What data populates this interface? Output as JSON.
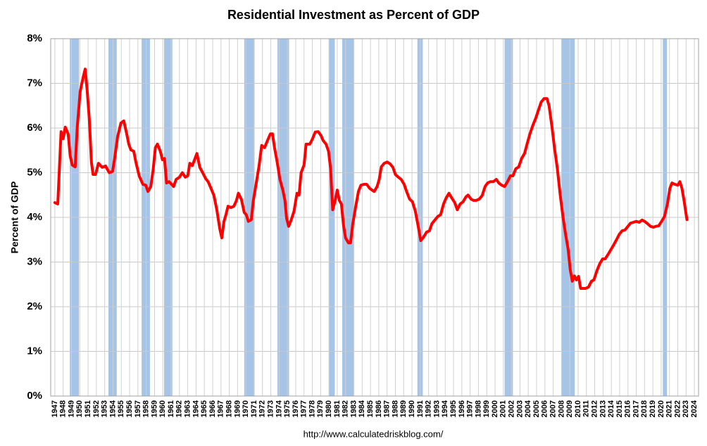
{
  "chart_data": {
    "type": "line",
    "title": "Residential Investment as Percent of GDP",
    "ylabel": "Percent of GDP",
    "source": "http://www.calculatedriskblog.com/",
    "color": "#ff0000",
    "recession_color": "#a6c3e8",
    "grid": true,
    "xlim": [
      1946.5,
      2024.5
    ],
    "ylim": [
      0,
      8
    ],
    "xticks": [
      1947,
      1948,
      1949,
      1950,
      1951,
      1952,
      1953,
      1954,
      1955,
      1956,
      1957,
      1958,
      1959,
      1960,
      1961,
      1962,
      1963,
      1964,
      1965,
      1966,
      1967,
      1968,
      1969,
      1970,
      1971,
      1972,
      1973,
      1974,
      1975,
      1976,
      1977,
      1978,
      1979,
      1980,
      1981,
      1982,
      1983,
      1984,
      1985,
      1986,
      1987,
      1988,
      1989,
      1990,
      1991,
      1992,
      1993,
      1994,
      1995,
      1996,
      1997,
      1998,
      1999,
      2000,
      2001,
      2002,
      2003,
      2004,
      2005,
      2006,
      2007,
      2008,
      2009,
      2010,
      2011,
      2012,
      2013,
      2014,
      2015,
      2016,
      2017,
      2018,
      2019,
      2020,
      2021,
      2022,
      2023,
      2024
    ],
    "yticks": [
      {
        "value": 0,
        "label": "0%"
      },
      {
        "value": 1,
        "label": "1%"
      },
      {
        "value": 2,
        "label": "2%"
      },
      {
        "value": 3,
        "label": "3%"
      },
      {
        "value": 4,
        "label": "4%"
      },
      {
        "value": 5,
        "label": "5%"
      },
      {
        "value": 6,
        "label": "6%"
      },
      {
        "value": 7,
        "label": "7%"
      },
      {
        "value": 8,
        "label": "8%"
      }
    ],
    "recessions": [
      [
        1948.8,
        1949.9
      ],
      [
        1953.45,
        1954.45
      ],
      [
        1957.45,
        1958.45
      ],
      [
        1960.15,
        1961.15
      ],
      [
        1969.8,
        1971.05
      ],
      [
        1973.8,
        1975.2
      ],
      [
        1980.0,
        1980.7
      ],
      [
        1981.6,
        1983.05
      ],
      [
        1990.65,
        1991.3
      ],
      [
        2001.15,
        2002.15
      ],
      [
        2008.0,
        2009.6
      ],
      [
        2020.2,
        2020.7
      ]
    ],
    "x": [
      1947.0,
      1947.35,
      1947.75,
      1948.0,
      1948.25,
      1948.6,
      1948.85,
      1949.1,
      1949.45,
      1949.7,
      1950.05,
      1950.4,
      1950.65,
      1950.9,
      1951.15,
      1951.4,
      1951.6,
      1951.9,
      1952.25,
      1952.7,
      1953.1,
      1953.55,
      1953.95,
      1954.2,
      1954.55,
      1954.95,
      1955.3,
      1955.65,
      1955.9,
      1956.15,
      1956.5,
      1956.75,
      1957.15,
      1957.6,
      1957.95,
      1958.2,
      1958.55,
      1958.85,
      1959.1,
      1959.35,
      1959.7,
      1959.95,
      1960.2,
      1960.45,
      1960.75,
      1961.05,
      1961.3,
      1961.6,
      1962.0,
      1962.35,
      1962.7,
      1963.0,
      1963.25,
      1963.55,
      1963.8,
      1964.1,
      1964.45,
      1964.8,
      1965.15,
      1965.45,
      1965.8,
      1966.15,
      1966.5,
      1966.85,
      1967.1,
      1967.35,
      1967.6,
      1967.85,
      1968.2,
      1968.55,
      1968.85,
      1969.1,
      1969.45,
      1969.8,
      1970.05,
      1970.3,
      1970.65,
      1970.9,
      1971.25,
      1971.6,
      1971.9,
      1972.25,
      1972.6,
      1972.95,
      1973.2,
      1973.45,
      1973.8,
      1974.1,
      1974.45,
      1974.7,
      1974.9,
      1975.15,
      1975.45,
      1975.8,
      1976.15,
      1976.4,
      1976.65,
      1977.0,
      1977.25,
      1977.7,
      1978.0,
      1978.35,
      1978.7,
      1979.05,
      1979.3,
      1979.65,
      1979.95,
      1980.2,
      1980.45,
      1980.75,
      1981.0,
      1981.25,
      1981.5,
      1981.75,
      1982.0,
      1982.35,
      1982.6,
      1982.85,
      1983.2,
      1983.55,
      1983.85,
      1984.2,
      1984.55,
      1984.9,
      1985.2,
      1985.45,
      1985.8,
      1986.05,
      1986.3,
      1986.65,
      1987.0,
      1987.35,
      1987.7,
      1988.0,
      1988.35,
      1988.7,
      1989.05,
      1989.35,
      1989.7,
      1990.05,
      1990.4,
      1990.75,
      1991.05,
      1991.4,
      1991.75,
      1992.1,
      1992.4,
      1992.75,
      1993.1,
      1993.45,
      1993.8,
      1994.1,
      1994.45,
      1994.8,
      1995.15,
      1995.45,
      1995.8,
      1996.15,
      1996.5,
      1996.75,
      1997.1,
      1997.4,
      1997.75,
      1998.1,
      1998.45,
      1998.8,
      1999.1,
      1999.45,
      1999.8,
      2000.15,
      2000.45,
      2000.8,
      2001.15,
      2001.5,
      2001.85,
      2002.15,
      2002.5,
      2002.85,
      2003.2,
      2003.55,
      2003.85,
      2004.2,
      2004.55,
      2004.9,
      2005.2,
      2005.55,
      2005.9,
      2006.25,
      2006.5,
      2006.85,
      2007.15,
      2007.5,
      2007.85,
      2008.2,
      2008.45,
      2008.8,
      2009.05,
      2009.3,
      2009.55,
      2009.8,
      2010.05,
      2010.3,
      2010.55,
      2010.9,
      2011.25,
      2011.6,
      2011.9,
      2012.25,
      2012.6,
      2012.95,
      2013.25,
      2013.6,
      2013.95,
      2014.3,
      2014.65,
      2014.95,
      2015.3,
      2015.65,
      2016.0,
      2016.3,
      2016.65,
      2017.0,
      2017.35,
      2017.7,
      2018.0,
      2018.35,
      2018.7,
      2019.05,
      2019.35,
      2019.7,
      2020.05,
      2020.4,
      2020.75,
      2021.05,
      2021.3,
      2021.65,
      2022.0,
      2022.25,
      2022.5,
      2022.75,
      2023.1
    ],
    "values": [
      4.33,
      4.3,
      5.92,
      5.76,
      6.02,
      5.87,
      5.37,
      5.17,
      5.13,
      6.03,
      6.82,
      7.13,
      7.32,
      6.82,
      6.19,
      5.24,
      4.96,
      4.96,
      5.21,
      5.12,
      5.15,
      5.0,
      5.03,
      5.32,
      5.8,
      6.11,
      6.16,
      5.87,
      5.64,
      5.51,
      5.48,
      5.24,
      4.93,
      4.74,
      4.72,
      4.58,
      4.69,
      5.09,
      5.56,
      5.64,
      5.48,
      5.29,
      5.32,
      4.77,
      4.8,
      4.74,
      4.69,
      4.85,
      4.9,
      5.0,
      4.9,
      4.93,
      5.21,
      5.16,
      5.28,
      5.43,
      5.12,
      5.0,
      4.87,
      4.8,
      4.65,
      4.49,
      4.17,
      3.75,
      3.54,
      3.9,
      4.06,
      4.25,
      4.22,
      4.25,
      4.37,
      4.54,
      4.41,
      4.11,
      4.06,
      3.91,
      3.95,
      4.38,
      4.77,
      5.17,
      5.61,
      5.56,
      5.72,
      5.87,
      5.87,
      5.56,
      5.2,
      4.85,
      4.61,
      4.38,
      3.98,
      3.8,
      3.94,
      4.14,
      4.54,
      4.5,
      5.0,
      5.17,
      5.64,
      5.64,
      5.75,
      5.91,
      5.92,
      5.83,
      5.72,
      5.64,
      5.48,
      5.09,
      4.17,
      4.38,
      4.61,
      4.38,
      4.3,
      3.83,
      3.54,
      3.43,
      3.43,
      3.83,
      4.22,
      4.58,
      4.72,
      4.74,
      4.74,
      4.65,
      4.61,
      4.58,
      4.69,
      4.85,
      5.13,
      5.21,
      5.24,
      5.2,
      5.12,
      4.96,
      4.9,
      4.85,
      4.74,
      4.58,
      4.41,
      4.35,
      4.14,
      3.8,
      3.48,
      3.56,
      3.67,
      3.7,
      3.86,
      3.94,
      4.02,
      4.06,
      4.3,
      4.43,
      4.54,
      4.43,
      4.33,
      4.17,
      4.3,
      4.35,
      4.46,
      4.5,
      4.41,
      4.38,
      4.38,
      4.41,
      4.49,
      4.69,
      4.77,
      4.8,
      4.8,
      4.85,
      4.77,
      4.72,
      4.69,
      4.8,
      4.93,
      4.93,
      5.09,
      5.13,
      5.32,
      5.43,
      5.64,
      5.87,
      6.06,
      6.22,
      6.39,
      6.58,
      6.66,
      6.66,
      6.5,
      6.03,
      5.56,
      5.09,
      4.49,
      3.98,
      3.67,
      3.28,
      2.83,
      2.57,
      2.69,
      2.6,
      2.68,
      2.41,
      2.41,
      2.41,
      2.44,
      2.57,
      2.6,
      2.8,
      2.96,
      3.07,
      3.07,
      3.17,
      3.28,
      3.39,
      3.51,
      3.62,
      3.7,
      3.72,
      3.8,
      3.87,
      3.89,
      3.91,
      3.89,
      3.94,
      3.91,
      3.86,
      3.8,
      3.78,
      3.8,
      3.81,
      3.91,
      4.02,
      4.3,
      4.65,
      4.77,
      4.74,
      4.72,
      4.8,
      4.65,
      4.38,
      3.95
    ]
  }
}
